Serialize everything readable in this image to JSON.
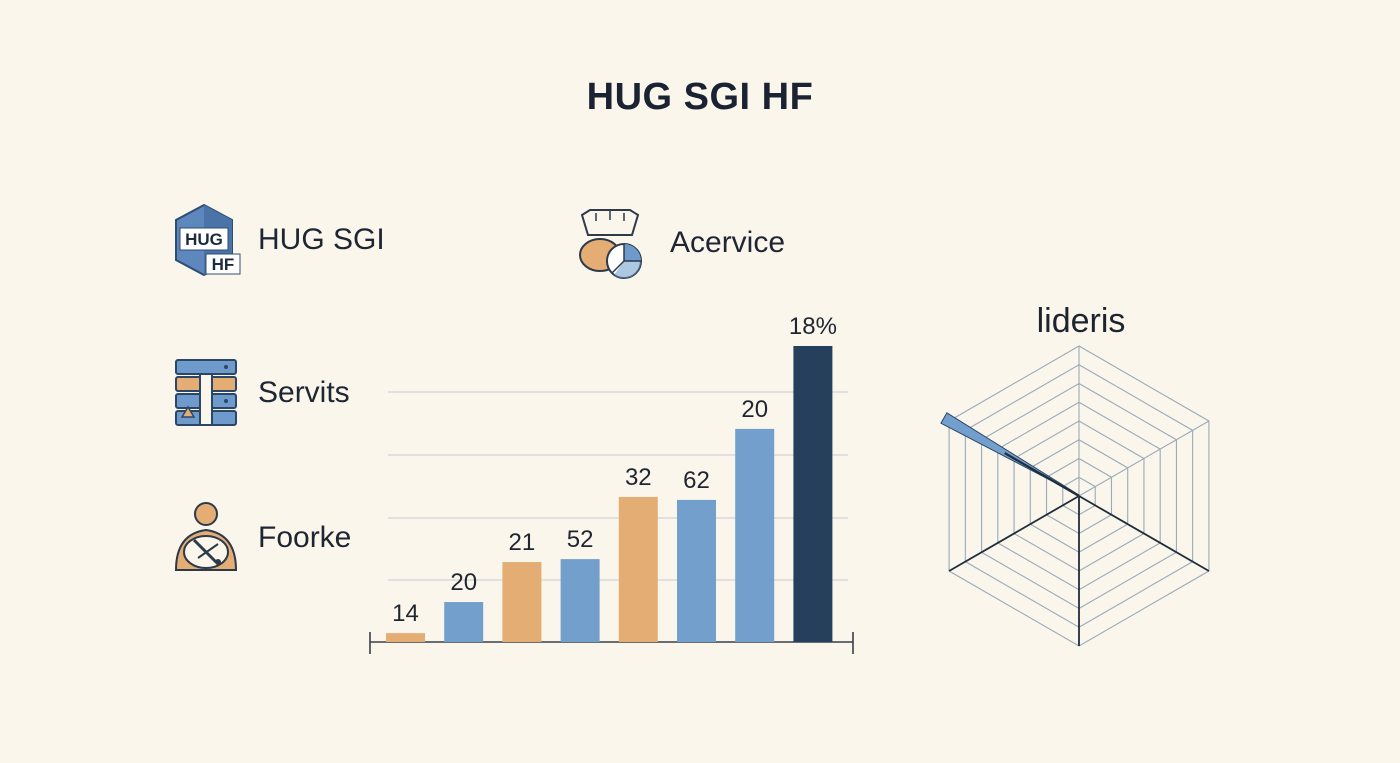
{
  "title": "HUG SGI HF",
  "legend": [
    {
      "label": "HUG SGI",
      "icon": "hexagon-logo-icon",
      "logo_text": "HUG HF"
    },
    {
      "label": "Servits",
      "icon": "server-rack-icon"
    },
    {
      "label": "Foorke",
      "icon": "person-tools-icon"
    },
    {
      "label": "Acervice",
      "icon": "pie-device-icon"
    }
  ],
  "colors": {
    "orange": "#e4ad73",
    "blue": "#729fcc",
    "navy": "#253f5c",
    "background": "#fbf6ec",
    "grid": "#d2d4d6"
  },
  "chart_data": [
    {
      "type": "bar",
      "title": "",
      "xlabel": "",
      "ylabel": "",
      "grid": true,
      "bars": [
        {
          "value": 14,
          "label": "14",
          "color": "orange"
        },
        {
          "value": 20,
          "label": "20",
          "color": "blue"
        },
        {
          "value": 21,
          "label": "21",
          "color": "orange"
        },
        {
          "value": 52,
          "label": "52",
          "color": "blue"
        },
        {
          "value": 32,
          "label": "32",
          "color": "orange"
        },
        {
          "value": 62,
          "label": "62",
          "color": "blue"
        },
        {
          "value": 20,
          "label": "20",
          "color": "blue"
        },
        {
          "value": 18,
          "label": "18%",
          "color": "navy"
        }
      ],
      "relative_heights": [
        0.03,
        0.135,
        0.27,
        0.28,
        0.49,
        0.48,
        0.72,
        1.0
      ]
    },
    {
      "type": "radar",
      "title": "lideris",
      "axes": 6,
      "rings": 8,
      "series": [
        {
          "values": [
            0,
            0,
            0,
            0,
            0,
            1.0
          ],
          "color": "blue"
        }
      ]
    }
  ]
}
